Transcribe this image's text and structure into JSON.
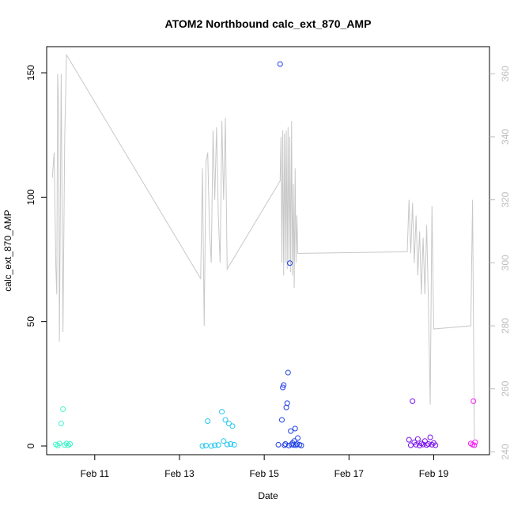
{
  "chart_data": {
    "type": "scatter",
    "title": "ATOM2 Northbound calc_ext_870_AMP",
    "xlabel": "Date",
    "ylabel": "calc_ext_870_AMP",
    "x_ticks": [
      "Feb 11",
      "Feb 13",
      "Feb 15",
      "Feb 17",
      "Feb 19"
    ],
    "y_ticks": [
      0,
      50,
      100,
      150
    ],
    "y2_ticks": [
      240,
      260,
      280,
      300,
      320,
      340,
      360
    ],
    "xlim": [
      "2023-02-09 20:46",
      "2023-02-20 07:35"
    ],
    "ylim": [
      -3.5,
      160.5
    ],
    "y2lim": [
      239.1,
      368.6
    ],
    "y2_color": "#bdbdbd",
    "grid": false,
    "series": [
      {
        "color": "#3cf5c8",
        "points": [
          [
            "2023-02-10 02:00",
            0.6
          ],
          [
            "2023-02-10 03:00",
            0.2
          ],
          [
            "2023-02-10 04:00",
            1.0
          ],
          [
            "2023-02-10 05:00",
            9.0
          ],
          [
            "2023-02-10 06:00",
            14.8
          ],
          [
            "2023-02-10 07:00",
            0.4
          ],
          [
            "2023-02-10 08:00",
            1.0
          ],
          [
            "2023-02-10 09:00",
            0.3
          ],
          [
            "2023-02-10 10:00",
            0.8
          ]
        ]
      },
      {
        "color": "#22c7f0",
        "points": [
          [
            "2023-02-13 13:00",
            0.0
          ],
          [
            "2023-02-13 15:00",
            0.2
          ],
          [
            "2023-02-13 16:00",
            10.0
          ],
          [
            "2023-02-13 18:00",
            0.0
          ],
          [
            "2023-02-13 20:00",
            0.3
          ],
          [
            "2023-02-13 22:00",
            0.4
          ],
          [
            "2023-02-14 00:00",
            13.8
          ],
          [
            "2023-02-14 01:00",
            2.0
          ],
          [
            "2023-02-14 02:00",
            10.5
          ],
          [
            "2023-02-14 03:00",
            0.6
          ],
          [
            "2023-02-14 04:00",
            9.0
          ],
          [
            "2023-02-14 05:00",
            0.8
          ],
          [
            "2023-02-14 06:00",
            8.0
          ],
          [
            "2023-02-14 07:00",
            0.5
          ]
        ]
      },
      {
        "color": "#1f3fe6",
        "points": [
          [
            "2023-02-15 08:00",
            0.5
          ],
          [
            "2023-02-15 09:00",
            153.5
          ],
          [
            "2023-02-15 10:00",
            10.5
          ],
          [
            "2023-02-15 10:30",
            23.5
          ],
          [
            "2023-02-15 11:00",
            24.5
          ],
          [
            "2023-02-15 11:30",
            0.3
          ],
          [
            "2023-02-15 12:00",
            0.8
          ],
          [
            "2023-02-15 12:30",
            15.5
          ],
          [
            "2023-02-15 13:00",
            17.2
          ],
          [
            "2023-02-15 13:30",
            29.5
          ],
          [
            "2023-02-15 14:00",
            0.2
          ],
          [
            "2023-02-15 14:30",
            73.5
          ],
          [
            "2023-02-15 15:00",
            6.0
          ],
          [
            "2023-02-15 15:30",
            0.6
          ],
          [
            "2023-02-15 16:00",
            1.2
          ],
          [
            "2023-02-15 16:30",
            0.4
          ],
          [
            "2023-02-15 17:00",
            2.0
          ],
          [
            "2023-02-15 17:30",
            7.0
          ],
          [
            "2023-02-15 18:00",
            0.3
          ],
          [
            "2023-02-15 18:30",
            0.8
          ],
          [
            "2023-02-15 19:00",
            3.2
          ],
          [
            "2023-02-15 20:00",
            0.5
          ],
          [
            "2023-02-15 21:00",
            0.2
          ]
        ]
      },
      {
        "color": "#7a10f0",
        "points": [
          [
            "2023-02-18 10:00",
            2.5
          ],
          [
            "2023-02-18 11:00",
            0.3
          ],
          [
            "2023-02-18 12:00",
            18.0
          ],
          [
            "2023-02-18 13:00",
            1.5
          ],
          [
            "2023-02-18 14:00",
            0.5
          ],
          [
            "2023-02-18 15:00",
            2.8
          ],
          [
            "2023-02-18 16:00",
            0.2
          ],
          [
            "2023-02-18 17:00",
            1.0
          ],
          [
            "2023-02-18 18:00",
            0.6
          ],
          [
            "2023-02-18 19:00",
            2.0
          ],
          [
            "2023-02-18 20:00",
            0.4
          ],
          [
            "2023-02-18 21:00",
            0.8
          ],
          [
            "2023-02-18 22:00",
            3.5
          ],
          [
            "2023-02-18 23:00",
            0.5
          ],
          [
            "2023-02-19 00:00",
            1.2
          ],
          [
            "2023-02-19 01:00",
            0.3
          ]
        ]
      },
      {
        "color": "#f01ef0",
        "points": [
          [
            "2023-02-19 21:00",
            1.0
          ],
          [
            "2023-02-19 22:00",
            0.5
          ],
          [
            "2023-02-19 22:30",
            18.0
          ],
          [
            "2023-02-19 23:00",
            0.3
          ],
          [
            "2023-02-19 23:30",
            1.5
          ]
        ]
      },
      {
        "color": "#c8c8c8",
        "type": "line",
        "axis": "right",
        "points": [
          [
            "2023-02-10 00:00",
            327.0
          ],
          [
            "2023-02-10 01:00",
            335.0
          ],
          [
            "2023-02-10 02:00",
            298.0
          ],
          [
            "2023-02-10 02:30",
            290.0
          ],
          [
            "2023-02-10 03:00",
            360.0
          ],
          [
            "2023-02-10 03:30",
            350.0
          ],
          [
            "2023-02-10 04:00",
            275.0
          ],
          [
            "2023-02-10 05:00",
            360.0
          ],
          [
            "2023-02-10 06:00",
            278.0
          ],
          [
            "2023-02-10 07:00",
            340.0
          ],
          [
            "2023-02-10 08:00",
            366.0
          ],
          [
            "2023-02-13 12:00",
            295.0
          ],
          [
            "2023-02-13 13:00",
            330.0
          ],
          [
            "2023-02-13 14:00",
            280.0
          ],
          [
            "2023-02-13 15:00",
            332.0
          ],
          [
            "2023-02-13 16:00",
            335.0
          ],
          [
            "2023-02-13 17:00",
            310.0
          ],
          [
            "2023-02-13 18:00",
            300.0
          ],
          [
            "2023-02-13 19:00",
            342.0
          ],
          [
            "2023-02-13 20:00",
            320.0
          ],
          [
            "2023-02-13 21:00",
            343.0
          ],
          [
            "2023-02-13 22:00",
            315.0
          ],
          [
            "2023-02-13 23:00",
            300.0
          ],
          [
            "2023-02-14 00:00",
            345.0
          ],
          [
            "2023-02-14 01:00",
            320.0
          ],
          [
            "2023-02-14 02:00",
            346.0
          ],
          [
            "2023-02-14 03:00",
            298.0
          ],
          [
            "2023-02-15 09:00",
            326.0
          ],
          [
            "2023-02-15 09:30",
            340.0
          ],
          [
            "2023-02-15 10:00",
            300.0
          ],
          [
            "2023-02-15 10:30",
            342.0
          ],
          [
            "2023-02-15 11:00",
            296.0
          ],
          [
            "2023-02-15 11:30",
            341.0
          ],
          [
            "2023-02-15 12:00",
            300.0
          ],
          [
            "2023-02-15 12:30",
            342.0
          ],
          [
            "2023-02-15 13:00",
            298.0
          ],
          [
            "2023-02-15 13:30",
            343.0
          ],
          [
            "2023-02-15 14:00",
            299.0
          ],
          [
            "2023-02-15 14:30",
            340.0
          ],
          [
            "2023-02-15 15:00",
            297.0
          ],
          [
            "2023-02-15 15:30",
            345.0
          ],
          [
            "2023-02-15 16:00",
            296.0
          ],
          [
            "2023-02-15 16:30",
            325.0
          ],
          [
            "2023-02-15 17:00",
            292.0
          ],
          [
            "2023-02-15 17:30",
            330.0
          ],
          [
            "2023-02-15 18:00",
            300.0
          ],
          [
            "2023-02-15 18:30",
            315.0
          ],
          [
            "2023-02-15 19:00",
            303.0
          ],
          [
            "2023-02-15 20:00",
            303.0
          ],
          [
            "2023-02-18 09:00",
            303.5
          ],
          [
            "2023-02-18 10:00",
            320.0
          ],
          [
            "2023-02-18 11:00",
            303.0
          ],
          [
            "2023-02-18 12:00",
            319.0
          ],
          [
            "2023-02-18 13:00",
            300.0
          ],
          [
            "2023-02-18 14:00",
            315.0
          ],
          [
            "2023-02-18 15:00",
            296.0
          ],
          [
            "2023-02-18 16:00",
            310.0
          ],
          [
            "2023-02-18 17:00",
            290.0
          ],
          [
            "2023-02-18 18:00",
            308.0
          ],
          [
            "2023-02-18 19:00",
            290.0
          ],
          [
            "2023-02-18 20:00",
            312.0
          ],
          [
            "2023-02-18 21:00",
            287.0
          ],
          [
            "2023-02-18 22:00",
            255.0
          ],
          [
            "2023-02-18 23:00",
            318.0
          ],
          [
            "2023-02-19 00:00",
            279.0
          ],
          [
            "2023-02-19 21:00",
            280.0
          ],
          [
            "2023-02-19 22:00",
            320.0
          ],
          [
            "2023-02-19 23:00",
            244.0
          ]
        ]
      }
    ]
  }
}
